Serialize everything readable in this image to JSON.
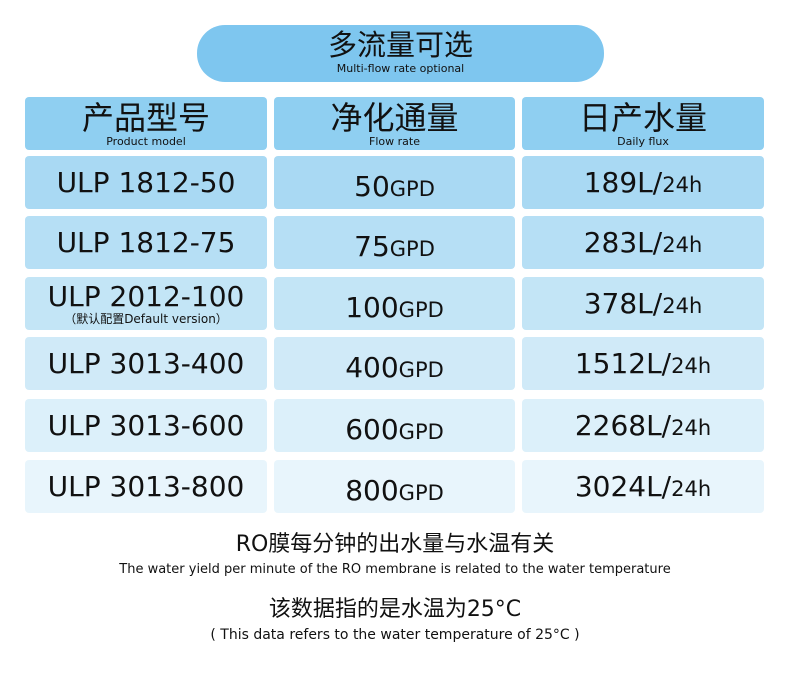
{
  "header": {
    "title": "多流量可选",
    "subtitle": "Multi-flow rate optional"
  },
  "table": {
    "columns": [
      {
        "title": "产品型号",
        "subtitle": "Product model"
      },
      {
        "title": "净化通量",
        "subtitle": "Flow rate"
      },
      {
        "title": "日产水量",
        "subtitle": "Daily flux"
      }
    ],
    "rows": [
      {
        "model": "ULP 1812-50",
        "flow": "50",
        "flow_unit": "GPD",
        "daily": "189L/",
        "daily_unit": "24h"
      },
      {
        "model": "ULP 1812-75",
        "flow": "75",
        "flow_unit": "GPD",
        "daily": "283L/",
        "daily_unit": "24h"
      },
      {
        "model": "ULP 2012-100",
        "note": "（默认配置Default version）",
        "flow": "100",
        "flow_unit": "GPD",
        "daily": "378L/",
        "daily_unit": "24h"
      },
      {
        "model": "ULP 3013-400",
        "flow": "400",
        "flow_unit": "GPD",
        "daily": "1512L/",
        "daily_unit": "24h"
      },
      {
        "model": "ULP 3013-600",
        "flow": "600",
        "flow_unit": "GPD",
        "daily": "2268L/",
        "daily_unit": "24h"
      },
      {
        "model": "ULP 3013-800",
        "flow": "800",
        "flow_unit": "GPD",
        "daily": "3024L/",
        "daily_unit": "24h"
      }
    ]
  },
  "footer": {
    "note1": "RO膜每分钟的出水量与水温有关",
    "note1_en": "The water yield per minute of the RO membrane is related to the water temperature",
    "note2": "该数据指的是水温为25°C",
    "note2_en": "( This data refers to the water temperature of 25°C )"
  }
}
